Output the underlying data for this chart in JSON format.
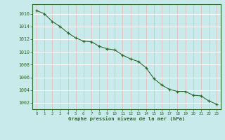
{
  "x": [
    0,
    1,
    2,
    3,
    4,
    5,
    6,
    7,
    8,
    9,
    10,
    11,
    12,
    13,
    14,
    15,
    16,
    17,
    18,
    19,
    20,
    21,
    22,
    23
  ],
  "y": [
    1016.5,
    1016.0,
    1014.8,
    1014.0,
    1013.0,
    1012.2,
    1011.7,
    1011.6,
    1010.9,
    1010.5,
    1010.3,
    1009.5,
    1008.9,
    1008.5,
    1007.5,
    1005.8,
    1004.8,
    1004.1,
    1003.8,
    1003.8,
    1003.2,
    1003.1,
    1002.3,
    1001.8
  ],
  "line_color": "#2d6a2d",
  "marker_color": "#2d6a2d",
  "bg_color": "#c8eaea",
  "grid_color_major": "#ffffff",
  "grid_color_minor": "#e8b4b4",
  "xlabel": "Graphe pression niveau de la mer (hPa)",
  "xlabel_color": "#2d6a2d",
  "tick_color": "#2d6a2d",
  "ylim": [
    1001.0,
    1017.5
  ],
  "yticks": [
    1002,
    1004,
    1006,
    1008,
    1010,
    1012,
    1014,
    1016
  ],
  "xlim": [
    -0.5,
    23.5
  ],
  "xticks": [
    0,
    1,
    2,
    3,
    4,
    5,
    6,
    7,
    8,
    9,
    10,
    11,
    12,
    13,
    14,
    15,
    16,
    17,
    18,
    19,
    20,
    21,
    22,
    23
  ]
}
